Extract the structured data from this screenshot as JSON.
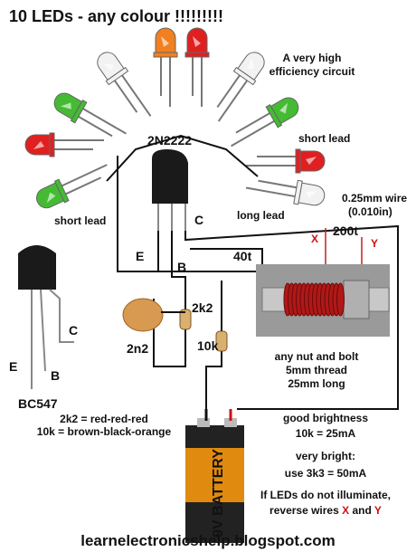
{
  "title": "10 LEDs - any colour !!!!!!!!!",
  "subtitle": [
    "A very high",
    "efficiency circuit"
  ],
  "transistor_main": {
    "label": "2N2222",
    "c": "C",
    "e": "E",
    "b": "B"
  },
  "lead_labels": {
    "short_right": "short lead",
    "short_left": "short lead",
    "long": "long lead"
  },
  "wire": {
    "spec": [
      "0.25mm wire",
      "(0.010in)"
    ],
    "turns_primary": "200t",
    "turns_secondary": "40t",
    "x": "X",
    "y": "Y"
  },
  "components": {
    "r1": "2k2",
    "c1": "2n2",
    "r2": "10k"
  },
  "bolt": [
    "any nut and bolt",
    "5mm thread",
    "25mm long"
  ],
  "transistor_alt": {
    "label": "BC547",
    "c": "C",
    "e": "E",
    "b": "B"
  },
  "color_codes": [
    "2k2 = red-red-red",
    "10k = brown-black-orange"
  ],
  "notes": [
    "good brightness",
    "10k = 25mA",
    "very bright:",
    "use 3k3 = 50mA",
    "If LEDs do not illuminate,"
  ],
  "reverse": {
    "text": "reverse wires ",
    "x": "X",
    "and": " and ",
    "y": "Y"
  },
  "battery": "9V BATTERY",
  "footer": "learnelectronicshelp.blogspot.com"
}
